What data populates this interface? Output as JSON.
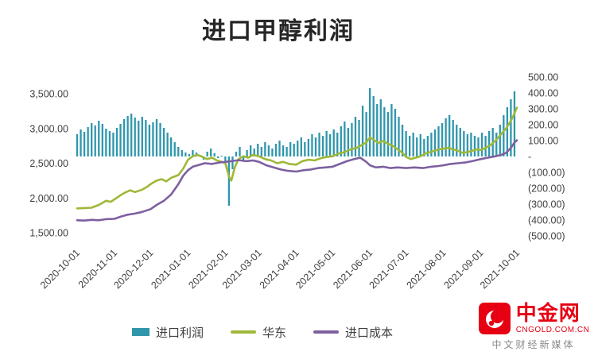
{
  "title": "进口甲醇利润",
  "colors": {
    "bar": "#2f96ac",
    "huadong": "#9fb838",
    "cost": "#7d60a0",
    "axis_text": "#404040",
    "title_text": "#262626",
    "logo_red": "#e60012",
    "tagline_gray": "#8a8a8a"
  },
  "legend": [
    {
      "label": "进口利润",
      "type": "bar",
      "color": "#2f96ac"
    },
    {
      "label": "华东",
      "type": "line",
      "color": "#9fb838"
    },
    {
      "label": "进口成本",
      "type": "line",
      "color": "#7d60a0"
    }
  ],
  "logo": {
    "name": "中金网",
    "domain": "CNGOLD.COM.CN",
    "tagline": "中文财经新媒体"
  },
  "chart_data": {
    "type": "combo",
    "title": "进口甲醇利润",
    "x_axis": {
      "labels": [
        "2020-10-01",
        "2020-11-01",
        "2020-12-01",
        "2021-01-01",
        "2021-02-01",
        "2021-03-01",
        "2021-04-01",
        "2021-05-01",
        "2021-06-01",
        "2021-07-01",
        "2021-08-01",
        "2021-09-01",
        "2021-10-01"
      ],
      "label_day_offsets": [
        0,
        31,
        61,
        92,
        123,
        151,
        182,
        212,
        243,
        273,
        304,
        335,
        365
      ],
      "range_days": [
        0,
        365
      ]
    },
    "left_axis": {
      "ticks": [
        "3,500.00",
        "3,000.00",
        "2,500.00",
        "2,000.00",
        "1,500.00"
      ],
      "tick_values": [
        3500,
        3000,
        2500,
        2000,
        1500
      ],
      "min": 1500,
      "max": 3500
    },
    "right_axis": {
      "ticks": [
        "500.00",
        "400.00",
        "300.00",
        "200.00",
        "100.00",
        "-",
        "(100.00)",
        "(200.00)",
        "(300.00)",
        "(400.00)",
        "(500.00)"
      ],
      "tick_values": [
        500,
        400,
        300,
        200,
        100,
        0,
        -100,
        -200,
        -300,
        -400,
        -500
      ],
      "min": -500,
      "max": 500
    },
    "series": [
      {
        "name": "进口利润",
        "type": "bar",
        "axis": "right",
        "color": "#2f96ac",
        "sample_step_days": 3,
        "values": [
          140,
          170,
          155,
          185,
          210,
          195,
          225,
          205,
          175,
          160,
          150,
          180,
          205,
          235,
          255,
          270,
          245,
          225,
          250,
          230,
          200,
          215,
          235,
          210,
          180,
          150,
          120,
          90,
          60,
          40,
          25,
          15,
          40,
          25,
          10,
          -20,
          30,
          50,
          20,
          -10,
          5,
          -40,
          -310,
          -80,
          30,
          60,
          -30,
          40,
          70,
          50,
          80,
          60,
          90,
          70,
          50,
          80,
          100,
          70,
          60,
          90,
          80,
          100,
          120,
          90,
          110,
          140,
          120,
          150,
          130,
          160,
          140,
          170,
          150,
          190,
          220,
          180,
          210,
          250,
          230,
          320,
          280,
          430,
          380,
          330,
          360,
          310,
          280,
          330,
          300,
          250,
          200,
          160,
          130,
          150,
          120,
          140,
          110,
          130,
          150,
          170,
          190,
          210,
          240,
          260,
          230,
          200,
          180,
          160,
          140,
          150,
          130,
          120,
          150,
          130,
          160,
          180,
          150,
          200,
          260,
          310,
          360,
          410
        ]
      },
      {
        "name": "华东",
        "type": "line",
        "axis": "left",
        "color": "#9fb838",
        "points": [
          [
            0,
            1850
          ],
          [
            6,
            1855
          ],
          [
            12,
            1860
          ],
          [
            18,
            1900
          ],
          [
            24,
            1960
          ],
          [
            28,
            1945
          ],
          [
            31,
            1980
          ],
          [
            36,
            2040
          ],
          [
            40,
            2080
          ],
          [
            44,
            2110
          ],
          [
            48,
            2085
          ],
          [
            54,
            2120
          ],
          [
            58,
            2160
          ],
          [
            61,
            2200
          ],
          [
            66,
            2250
          ],
          [
            70,
            2270
          ],
          [
            74,
            2240
          ],
          [
            78,
            2290
          ],
          [
            84,
            2330
          ],
          [
            88,
            2420
          ],
          [
            92,
            2550
          ],
          [
            96,
            2600
          ],
          [
            100,
            2620
          ],
          [
            104,
            2590
          ],
          [
            108,
            2560
          ],
          [
            112,
            2580
          ],
          [
            116,
            2540
          ],
          [
            120,
            2520
          ],
          [
            123,
            2500
          ],
          [
            126,
            2310
          ],
          [
            128,
            2250
          ],
          [
            131,
            2450
          ],
          [
            134,
            2560
          ],
          [
            138,
            2600
          ],
          [
            142,
            2580
          ],
          [
            146,
            2620
          ],
          [
            151,
            2600
          ],
          [
            156,
            2560
          ],
          [
            161,
            2540
          ],
          [
            166,
            2500
          ],
          [
            171,
            2520
          ],
          [
            176,
            2490
          ],
          [
            182,
            2480
          ],
          [
            187,
            2530
          ],
          [
            192,
            2550
          ],
          [
            197,
            2540
          ],
          [
            202,
            2570
          ],
          [
            207,
            2590
          ],
          [
            212,
            2600
          ],
          [
            217,
            2640
          ],
          [
            222,
            2660
          ],
          [
            227,
            2700
          ],
          [
            232,
            2720
          ],
          [
            236,
            2760
          ],
          [
            240,
            2800
          ],
          [
            243,
            2870
          ],
          [
            246,
            2840
          ],
          [
            250,
            2790
          ],
          [
            254,
            2820
          ],
          [
            258,
            2780
          ],
          [
            262,
            2750
          ],
          [
            266,
            2700
          ],
          [
            270,
            2650
          ],
          [
            273,
            2590
          ],
          [
            277,
            2560
          ],
          [
            281,
            2580
          ],
          [
            285,
            2600
          ],
          [
            289,
            2640
          ],
          [
            293,
            2660
          ],
          [
            297,
            2680
          ],
          [
            300,
            2700
          ],
          [
            304,
            2710
          ],
          [
            308,
            2720
          ],
          [
            312,
            2700
          ],
          [
            316,
            2680
          ],
          [
            320,
            2650
          ],
          [
            324,
            2660
          ],
          [
            328,
            2680
          ],
          [
            332,
            2700
          ],
          [
            335,
            2690
          ],
          [
            339,
            2720
          ],
          [
            343,
            2760
          ],
          [
            347,
            2820
          ],
          [
            350,
            2880
          ],
          [
            353,
            2940
          ],
          [
            356,
            3000
          ],
          [
            359,
            3080
          ],
          [
            362,
            3180
          ],
          [
            365,
            3300
          ]
        ]
      },
      {
        "name": "进口成本",
        "type": "line",
        "axis": "left",
        "color": "#7d60a0",
        "points": [
          [
            0,
            1680
          ],
          [
            6,
            1675
          ],
          [
            12,
            1685
          ],
          [
            18,
            1680
          ],
          [
            24,
            1695
          ],
          [
            31,
            1700
          ],
          [
            36,
            1730
          ],
          [
            42,
            1760
          ],
          [
            48,
            1775
          ],
          [
            54,
            1800
          ],
          [
            61,
            1840
          ],
          [
            66,
            1900
          ],
          [
            72,
            1960
          ],
          [
            78,
            2050
          ],
          [
            84,
            2200
          ],
          [
            88,
            2320
          ],
          [
            92,
            2400
          ],
          [
            96,
            2450
          ],
          [
            100,
            2470
          ],
          [
            106,
            2500
          ],
          [
            112,
            2490
          ],
          [
            118,
            2510
          ],
          [
            123,
            2520
          ],
          [
            128,
            2530
          ],
          [
            134,
            2545
          ],
          [
            140,
            2530
          ],
          [
            146,
            2540
          ],
          [
            151,
            2520
          ],
          [
            157,
            2470
          ],
          [
            163,
            2440
          ],
          [
            169,
            2410
          ],
          [
            175,
            2390
          ],
          [
            182,
            2380
          ],
          [
            188,
            2400
          ],
          [
            194,
            2410
          ],
          [
            200,
            2430
          ],
          [
            206,
            2440
          ],
          [
            212,
            2450
          ],
          [
            218,
            2490
          ],
          [
            224,
            2530
          ],
          [
            230,
            2560
          ],
          [
            235,
            2580
          ],
          [
            240,
            2520
          ],
          [
            243,
            2470
          ],
          [
            248,
            2440
          ],
          [
            254,
            2450
          ],
          [
            260,
            2430
          ],
          [
            266,
            2440
          ],
          [
            273,
            2430
          ],
          [
            280,
            2440
          ],
          [
            287,
            2430
          ],
          [
            294,
            2450
          ],
          [
            300,
            2460
          ],
          [
            304,
            2470
          ],
          [
            310,
            2490
          ],
          [
            316,
            2500
          ],
          [
            322,
            2510
          ],
          [
            328,
            2530
          ],
          [
            335,
            2560
          ],
          [
            341,
            2580
          ],
          [
            347,
            2600
          ],
          [
            352,
            2620
          ],
          [
            356,
            2650
          ],
          [
            360,
            2720
          ],
          [
            363,
            2800
          ],
          [
            365,
            2830
          ]
        ]
      }
    ],
    "legend_position": "bottom",
    "grid": false
  }
}
